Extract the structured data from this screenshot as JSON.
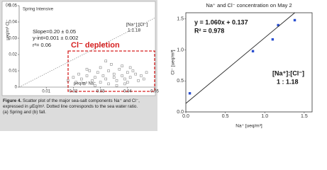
{
  "chart_data": [
    {
      "type": "scatter",
      "panel": "(a)",
      "title": "Spring Intensive",
      "x_label": "μeq/m³ Na⁺",
      "y_label": "μeq/m³ Cl⁻",
      "xlim": [
        0,
        0.05
      ],
      "ylim": [
        0,
        0.05
      ],
      "xticks": [
        0.01,
        0.02,
        0.03,
        0.04,
        0.05
      ],
      "yticks": [
        0,
        0.01,
        0.02,
        0.03,
        0.04,
        0.05
      ],
      "series": [
        {
          "color": "#777777",
          "x": [
            0.018,
            0.02,
            0.021,
            0.022,
            0.023,
            0.024,
            0.025,
            0.026,
            0.027,
            0.028,
            0.029,
            0.03,
            0.03,
            0.031,
            0.032,
            0.033,
            0.033,
            0.034,
            0.035,
            0.035,
            0.036,
            0.037,
            0.038,
            0.038,
            0.039,
            0.04,
            0.04,
            0.041,
            0.042,
            0.043,
            0.044,
            0.045,
            0.046,
            0.047,
            0.032,
            0.028,
            0.036,
            0.041,
            0.025,
            0.039
          ],
          "values": [
            0.004,
            0.006,
            0.003,
            0.008,
            0.005,
            0.002,
            0.007,
            0.01,
            0.004,
            0.006,
            0.009,
            0.003,
            0.012,
            0.007,
            0.005,
            0.01,
            0.002,
            0.014,
            0.006,
            0.008,
            0.004,
            0.011,
            0.007,
            0.013,
            0.005,
            0.009,
            0.003,
            0.006,
            0.01,
            0.008,
            0.004,
            0.007,
            0.005,
            0.009,
            0.016,
            0.001,
            0.001,
            0.012,
            0.011,
            0.002
          ]
        }
      ],
      "reference_line": {
        "x": [
          0,
          0.05
        ],
        "values": [
          0,
          0.0424
        ]
      },
      "annotations": [
        "Slope=0.20 ± 0.05",
        "y-int=0.001 ± 0.002",
        "r²= 0.06",
        "[Na⁺]:[Cl⁻]",
        "1:1.18",
        "Cl⁻ depletion"
      ]
    },
    {
      "type": "scatter",
      "title": "Na⁺ and Cl⁻ concentration on May 2",
      "x_label": "Na⁺ [ueq/m³]",
      "y_label": "Cl⁻ [ueq/m³]",
      "xlim": [
        0,
        1.6
      ],
      "ylim": [
        0,
        1.6
      ],
      "xticks": [
        {
          "value": 0,
          "label": "0.0"
        },
        {
          "value": 0.5,
          "label": "0.5"
        },
        {
          "value": 1,
          "label": "1.0"
        },
        {
          "value": 1.5,
          "label": "1.5"
        }
      ],
      "yticks": [
        {
          "value": 0,
          "label": "0.0"
        },
        {
          "value": 0.5,
          "label": "0.5"
        },
        {
          "value": 1,
          "label": "1.0"
        },
        {
          "value": 1.5,
          "label": "1.5"
        }
      ],
      "series": [
        {
          "color": "#2a4fd0",
          "x": [
            0.05,
            0.85,
            1.1,
            1.17,
            1.38
          ],
          "values": [
            0.3,
            0.98,
            1.17,
            1.4,
            1.48
          ]
        }
      ],
      "fit": {
        "slope": 1.06,
        "intercept": 0.137
      },
      "annotations": [
        "y = 1.060x + 0.137",
        "R² = 0.978",
        "[Na⁺]:[Cl⁻]",
        "1 : 1.18"
      ]
    }
  ],
  "caption": {
    "label": "Figure 4.",
    "lines": [
      "Scatter plot of the major sea-salt components Na⁺ and Cl⁻,",
      "expressed in μEq/m³. Dotted line corresponds to the sea water ratio.",
      "(a) Spring and (b) fall."
    ]
  }
}
